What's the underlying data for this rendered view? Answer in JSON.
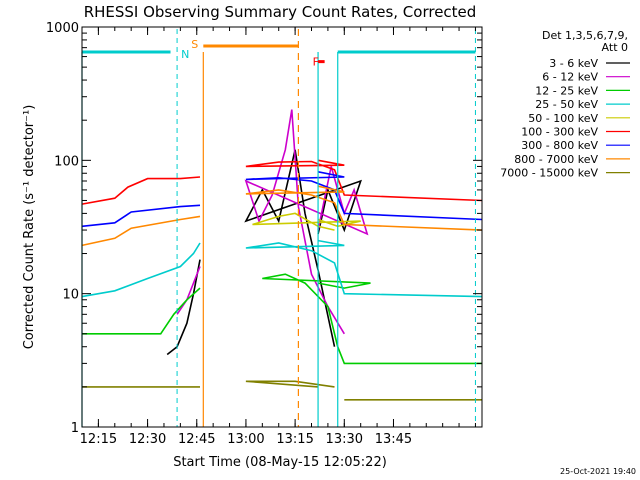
{
  "chart_data": {
    "type": "line",
    "title": "RHESSI Observing Summary Count Rates, Corrected",
    "xlabel": "Start Time (08-May-15 12:05:22)",
    "ylabel": "Corrected Count Rate (s⁻¹ detector⁻¹)",
    "yscale": "log",
    "ylim": [
      1,
      1000
    ],
    "xlim_minutes": [
      12.1,
      13.72
    ],
    "x_ticks": [
      "12:15",
      "12:30",
      "12:45",
      "13:00",
      "13:15",
      "13:30",
      "13:45"
    ],
    "y_ticks": [
      "1",
      "10",
      "100",
      "1000"
    ],
    "legend_header": [
      "Det 1,3,5,6,7,9,",
      "Att 0"
    ],
    "legend_position": "right",
    "footer": "25-Oct-2021 19:40",
    "series": [
      {
        "name": "3 - 6 keV",
        "color": "#000000",
        "segments": [
          {
            "x": [
              12.36,
              12.39,
              12.42,
              12.44,
              12.46
            ],
            "y": [
              3.5,
              4,
              6,
              10,
              18
            ]
          },
          {
            "x": [
              12.82,
              12.85,
              12.9,
              12.95,
              13.0,
              13.05,
              13.1,
              13.15,
              13.18,
              13.22,
              13.27
            ],
            "y": [
              28,
              60,
              30,
              70,
              35,
              60,
              35,
              120,
              40,
              15,
              4
            ]
          }
        ]
      },
      {
        "name": "6 - 12 keV",
        "color": "#cc00cc",
        "segments": [
          {
            "x": [
              12.39,
              12.42,
              12.44,
              12.46
            ],
            "y": [
              7,
              9,
              12,
              16
            ]
          },
          {
            "x": [
              12.82,
              12.86,
              12.9,
              12.93,
              12.97,
              13.0,
              13.04,
              13.08,
              13.12,
              13.14,
              13.16,
              13.2,
              13.25,
              13.3
            ],
            "y": [
              30,
              90,
              40,
              60,
              28,
              70,
              35,
              55,
              120,
              240,
              45,
              14,
              8,
              5
            ]
          }
        ]
      },
      {
        "name": "12 - 25 keV",
        "color": "#00cc00",
        "segments": [
          {
            "x": [
              12.1,
              12.34,
              12.38,
              12.42,
              12.46
            ],
            "y": [
              5,
              5,
              7,
              9,
              11
            ]
          },
          {
            "x": [
              12.82,
              12.9,
              12.98,
              13.05,
              13.12,
              13.18,
              13.25,
              13.28,
              13.3,
              13.72
            ],
            "y": [
              12,
              11,
              12,
              13,
              14,
              12,
              8,
              4,
              3,
              3
            ]
          }
        ]
      },
      {
        "name": "25 - 50 keV",
        "color": "#00cccc",
        "segments": [
          {
            "x": [
              12.1,
              12.2,
              12.3,
              12.4,
              12.44,
              12.46
            ],
            "y": [
              9.5,
              10.5,
              13,
              16,
              20,
              24
            ]
          },
          {
            "x": [
              12.82,
              12.9,
              13.0,
              13.1,
              13.2,
              13.27,
              13.3,
              13.72
            ],
            "y": [
              25,
              23,
              22,
              24,
              21,
              17,
              10,
              9.5
            ]
          }
        ]
      },
      {
        "name": "50 - 100 keV",
        "color": "#cccc00",
        "segments": [
          {
            "x": [
              12.82,
              12.88,
              12.95,
              13.02,
              13.1,
              13.15,
              13.22,
              13.27
            ],
            "y": [
              36,
              32,
              35,
              33,
              38,
              40,
              32,
              30
            ]
          }
        ]
      },
      {
        "name": "100 - 300 keV",
        "color": "#ff0000",
        "segments": [
          {
            "x": [
              12.1,
              12.2,
              12.24,
              12.3,
              12.4,
              12.46
            ],
            "y": [
              47,
              52,
              63,
              73,
              73,
              75
            ]
          },
          {
            "x": [
              12.82,
              12.9,
              13.0,
              13.1,
              13.2,
              13.27,
              13.3,
              13.72
            ],
            "y": [
              100,
              92,
              90,
              97,
              98,
              85,
              55,
              50
            ]
          }
        ]
      },
      {
        "name": "300 - 800 keV",
        "color": "#0000ff",
        "segments": [
          {
            "x": [
              12.1,
              12.2,
              12.25,
              12.4,
              12.46
            ],
            "y": [
              32,
              34,
              41,
              45,
              46
            ]
          },
          {
            "x": [
              12.82,
              12.9,
              13.0,
              13.1,
              13.2,
              13.27,
              13.3,
              13.72
            ],
            "y": [
              82,
              75,
              72,
              74,
              70,
              60,
              40,
              36
            ]
          }
        ]
      },
      {
        "name": "800 - 7000 keV",
        "color": "#ff8800",
        "segments": [
          {
            "x": [
              12.1,
              12.2,
              12.25,
              12.4,
              12.46
            ],
            "y": [
              23,
              26,
              31,
              36,
              38
            ]
          },
          {
            "x": [
              12.82,
              12.9,
              13.0,
              13.1,
              13.2,
              13.27,
              13.3,
              13.72
            ],
            "y": [
              64,
              58,
              56,
              60,
              55,
              48,
              33,
              30
            ]
          }
        ]
      },
      {
        "name": "7000 - 15000 keV",
        "color": "#808000",
        "segments": [
          {
            "x": [
              12.1,
              12.3,
              12.46
            ],
            "y": [
              2,
              2,
              2
            ]
          },
          {
            "x": [
              12.82,
              13.0,
              13.15,
              13.27
            ],
            "y": [
              2,
              2.2,
              2.2,
              2
            ]
          },
          {
            "x": [
              13.3,
              13.72
            ],
            "y": [
              1.6,
              1.6
            ]
          }
        ]
      }
    ],
    "annotations": {
      "attenuator_lines": [
        {
          "label": "N",
          "color": "#00cccc",
          "x": 12.39
        },
        {
          "label": "",
          "color": "#00cccc",
          "x": 13.7
        }
      ],
      "saa_lines": [
        {
          "label": "S",
          "color": "#ff8800",
          "x": 12.76
        }
      ],
      "night_bars": [
        {
          "color": "#00cccc",
          "x": [
            12.1,
            12.37
          ],
          "y": 650
        },
        {
          "color": "#00cccc",
          "x": [
            13.28,
            13.7
          ],
          "y": 650
        }
      ],
      "saa_bar": {
        "color": "#ff8800",
        "x": [
          12.47,
          12.76
        ],
        "y": 720
      },
      "flare_bar": {
        "label": "F",
        "color": "#ff0000",
        "x": [
          12.84,
          13.22
        ],
        "y": 550
      },
      "solid_verticals": [
        {
          "color": "#00cccc",
          "x": 12.1
        },
        {
          "color": "#ff8800",
          "x": 12.47
        },
        {
          "color": "#00cccc",
          "x": 12.82
        },
        {
          "color": "#00cccc",
          "x": 13.28
        }
      ]
    }
  }
}
